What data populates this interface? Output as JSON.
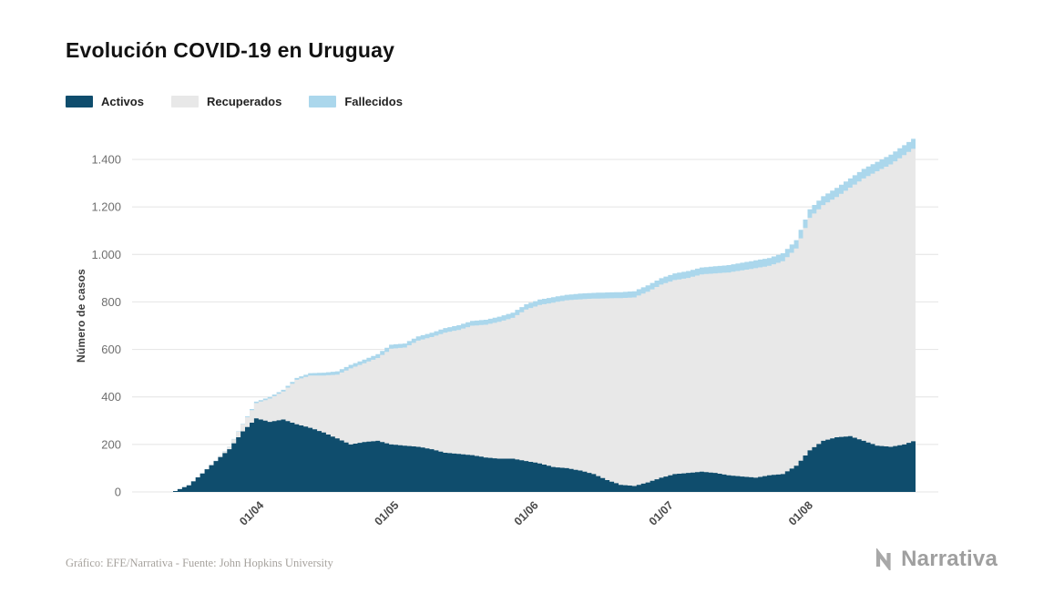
{
  "page": {
    "title": "Evolución COVID-19 en Uruguay"
  },
  "footer": {
    "credit": "Gráfico: EFE/Narrativa - Fuente: John Hopkins University"
  },
  "brand": {
    "name": "Narrativa"
  },
  "chart_data": {
    "type": "area",
    "stacked": true,
    "step": true,
    "title": "Evolución COVID-19 en Uruguay",
    "xlabel": "",
    "ylabel": "Número de casos",
    "ylim": [
      0,
      1540
    ],
    "grid": "horizontal",
    "legend_position": "top-left",
    "background": "#ffffff",
    "gridline_color": "#e4e4e4",
    "yticks": [
      0,
      200,
      400,
      600,
      800,
      1000,
      1200,
      1400
    ],
    "ytick_labels": [
      "0",
      "200",
      "400",
      "600",
      "800",
      "1.000",
      "1.200",
      "1.400"
    ],
    "xticks": [
      {
        "label": "01/04",
        "day": 19
      },
      {
        "label": "01/05",
        "day": 49
      },
      {
        "label": "01/06",
        "day": 80
      },
      {
        "label": "01/07",
        "day": 110
      },
      {
        "label": "01/08",
        "day": 141
      }
    ],
    "day_step": 3,
    "dates": [
      "13/03",
      "16/03",
      "19/03",
      "22/03",
      "25/03",
      "28/03",
      "31/03",
      "03/04",
      "06/04",
      "09/04",
      "12/04",
      "15/04",
      "18/04",
      "21/04",
      "24/04",
      "27/04",
      "30/04",
      "03/05",
      "06/05",
      "09/05",
      "12/05",
      "15/05",
      "18/05",
      "21/05",
      "24/05",
      "27/05",
      "30/05",
      "02/06",
      "05/06",
      "08/06",
      "11/06",
      "14/06",
      "17/06",
      "20/06",
      "23/06",
      "26/06",
      "29/06",
      "02/07",
      "05/07",
      "08/07",
      "11/07",
      "14/07",
      "17/07",
      "20/07",
      "23/07",
      "26/07",
      "29/07",
      "01/08",
      "04/08",
      "07/08",
      "10/08",
      "13/08",
      "16/08",
      "19/08",
      "22/08",
      "25/08"
    ],
    "series": [
      {
        "name": "Activos",
        "color": "#0f4d6d",
        "values": [
          4,
          28,
          78,
          130,
          180,
          255,
          310,
          295,
          305,
          285,
          270,
          250,
          225,
          200,
          210,
          215,
          200,
          195,
          190,
          180,
          165,
          160,
          155,
          145,
          140,
          140,
          130,
          120,
          105,
          100,
          90,
          75,
          50,
          30,
          25,
          40,
          60,
          75,
          80,
          85,
          80,
          70,
          65,
          60,
          70,
          75,
          110,
          175,
          215,
          230,
          235,
          215,
          195,
          190,
          200,
          220
        ]
      },
      {
        "name": "Recuperados",
        "color": "#e8e8e8",
        "values": [
          0,
          0,
          0,
          0,
          10,
          30,
          64,
          98,
          118,
          187,
          220,
          240,
          269,
          320,
          332,
          349,
          403,
          413,
          447,
          472,
          506,
          522,
          545,
          559,
          576,
          593,
          638,
          667,
          692,
          707,
          721,
          739,
          765,
          786,
          794,
          803,
          813,
          817,
          821,
          831,
          840,
          854,
          868,
          882,
          882,
          896,
          915,
          979,
          993,
          1012,
          1046,
          1105,
          1155,
          1189,
          1218,
          1238
        ]
      },
      {
        "name": "Fallecidos",
        "color": "#abd7ec",
        "values": [
          0,
          0,
          0,
          1,
          1,
          2,
          6,
          7,
          7,
          8,
          10,
          12,
          14,
          15,
          15,
          16,
          17,
          17,
          18,
          18,
          19,
          20,
          20,
          21,
          22,
          22,
          22,
          23,
          23,
          23,
          24,
          24,
          25,
          25,
          26,
          27,
          27,
          28,
          29,
          29,
          30,
          31,
          32,
          33,
          33,
          34,
          35,
          36,
          37,
          38,
          39,
          40,
          40,
          41,
          42,
          42
        ]
      }
    ]
  }
}
